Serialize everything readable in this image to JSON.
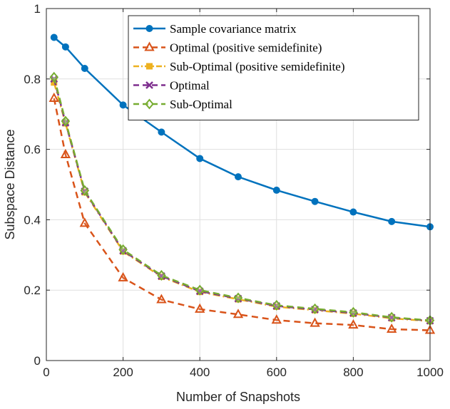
{
  "chart_data": {
    "type": "line",
    "xlabel": "Number of Snapshots",
    "ylabel": "Subspace Distance",
    "xlim": [
      0,
      1000
    ],
    "ylim": [
      0,
      1
    ],
    "xticks": [
      0,
      200,
      400,
      600,
      800,
      1000
    ],
    "xtick_labels": [
      "0",
      "200",
      "400",
      "600",
      "800",
      "1000"
    ],
    "yticks": [
      0,
      0.2,
      0.4,
      0.6,
      0.8,
      1
    ],
    "ytick_labels": [
      "0",
      "0.2",
      "0.4",
      "0.6",
      "0.8",
      "1"
    ],
    "grid": true,
    "legend_position": "top-right",
    "x": [
      20,
      50,
      100,
      200,
      300,
      400,
      500,
      600,
      700,
      800,
      900,
      1000
    ],
    "series": [
      {
        "name": "Sample covariance matrix",
        "color": "#0072BD",
        "line_style": "solid",
        "marker": "circle",
        "values": [
          0.918,
          0.891,
          0.83,
          0.726,
          0.649,
          0.574,
          0.522,
          0.484,
          0.452,
          0.422,
          0.395,
          0.38
        ]
      },
      {
        "name": "Optimal (positive semidefinite)",
        "color": "#D95319",
        "line_style": "dashed",
        "marker": "triangle",
        "values": [
          0.745,
          0.585,
          0.39,
          0.235,
          0.173,
          0.146,
          0.131,
          0.115,
          0.106,
          0.101,
          0.089,
          0.086
        ]
      },
      {
        "name": "Sub-Optimal (positive semidefinite)",
        "color": "#EDB120",
        "line_style": "dashdot",
        "marker": "square",
        "values": [
          0.79,
          0.674,
          0.478,
          0.31,
          0.238,
          0.195,
          0.174,
          0.153,
          0.143,
          0.133,
          0.12,
          0.112
        ]
      },
      {
        "name": "Optimal",
        "color": "#7E2F8E",
        "line_style": "dashed",
        "marker": "x",
        "values": [
          0.8,
          0.676,
          0.481,
          0.312,
          0.24,
          0.197,
          0.176,
          0.155,
          0.145,
          0.135,
          0.122,
          0.113
        ]
      },
      {
        "name": "Sub-Optimal",
        "color": "#77AC30",
        "line_style": "dashed",
        "marker": "diamond",
        "values": [
          0.805,
          0.68,
          0.483,
          0.315,
          0.242,
          0.2,
          0.178,
          0.157,
          0.147,
          0.137,
          0.123,
          0.114
        ]
      }
    ]
  }
}
